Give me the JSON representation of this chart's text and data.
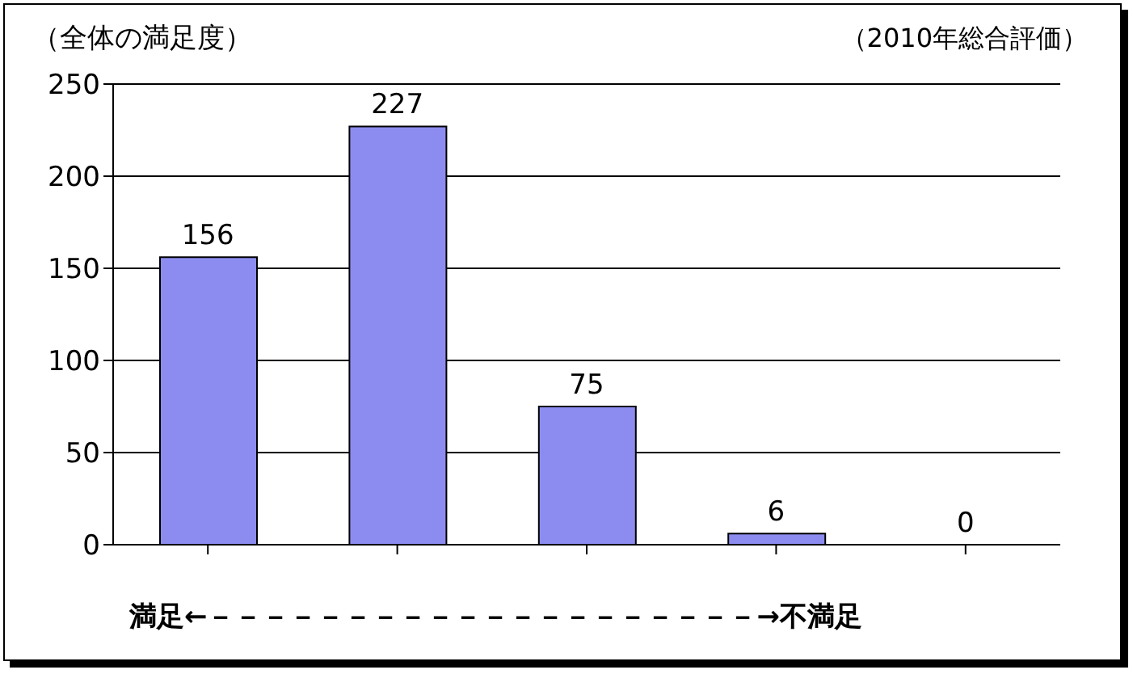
{
  "chart_data": {
    "type": "bar",
    "title": "（全体の満足度）",
    "subtitle": "（2010年総合評価）",
    "xlabel": "満足←－－－－－－－－－－－－－－－－－－－－→不満足",
    "categories": [
      null,
      null,
      null,
      null,
      null
    ],
    "series": [
      {
        "color": "#8c8cf0",
        "values": [
          156,
          227,
          75,
          6,
          0
        ]
      }
    ],
    "ylim": [
      0,
      250
    ],
    "yticks": [
      0,
      50,
      100,
      150,
      200,
      250
    ],
    "grid": "y",
    "data_labels": true
  }
}
